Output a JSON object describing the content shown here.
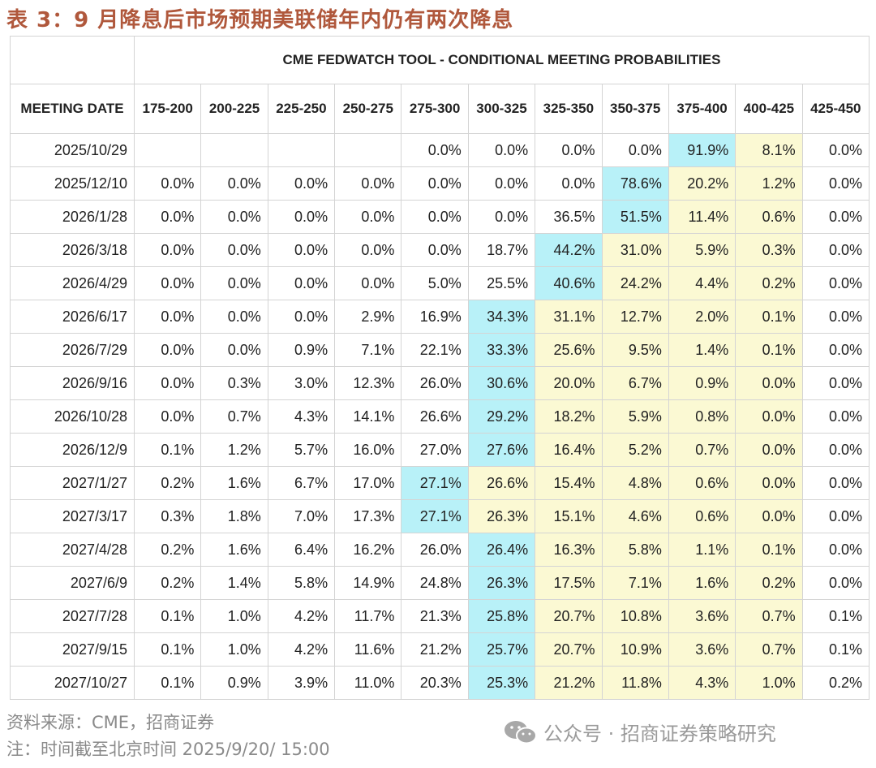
{
  "title": "表 3：9 月降息后市场预期美联储年内仍有两次降息",
  "table": {
    "group_header": "CME FEDWATCH TOOL - CONDITIONAL MEETING PROBABILITIES",
    "first_column_header": "MEETING DATE",
    "columns": [
      "175-200",
      "200-225",
      "225-250",
      "250-275",
      "275-300",
      "300-325",
      "325-350",
      "350-375",
      "375-400",
      "400-425",
      "425-450"
    ],
    "rows": [
      {
        "date": "2025/10/29",
        "values": [
          null,
          null,
          null,
          null,
          "0.0%",
          "0.0%",
          "0.0%",
          "0.0%",
          "91.9%",
          "8.1%",
          "0.0%"
        ]
      },
      {
        "date": "2025/12/10",
        "values": [
          "0.0%",
          "0.0%",
          "0.0%",
          "0.0%",
          "0.0%",
          "0.0%",
          "0.0%",
          "78.6%",
          "20.2%",
          "1.2%",
          "0.0%"
        ]
      },
      {
        "date": "2026/1/28",
        "values": [
          "0.0%",
          "0.0%",
          "0.0%",
          "0.0%",
          "0.0%",
          "0.0%",
          "36.5%",
          "51.5%",
          "11.4%",
          "0.6%",
          "0.0%"
        ]
      },
      {
        "date": "2026/3/18",
        "values": [
          "0.0%",
          "0.0%",
          "0.0%",
          "0.0%",
          "0.0%",
          "18.7%",
          "44.2%",
          "31.0%",
          "5.9%",
          "0.3%",
          "0.0%"
        ]
      },
      {
        "date": "2026/4/29",
        "values": [
          "0.0%",
          "0.0%",
          "0.0%",
          "0.0%",
          "5.0%",
          "25.5%",
          "40.6%",
          "24.2%",
          "4.4%",
          "0.2%",
          "0.0%"
        ]
      },
      {
        "date": "2026/6/17",
        "values": [
          "0.0%",
          "0.0%",
          "0.0%",
          "2.9%",
          "16.9%",
          "34.3%",
          "31.1%",
          "12.7%",
          "2.0%",
          "0.1%",
          "0.0%"
        ]
      },
      {
        "date": "2026/7/29",
        "values": [
          "0.0%",
          "0.0%",
          "0.9%",
          "7.1%",
          "22.1%",
          "33.3%",
          "25.6%",
          "9.5%",
          "1.4%",
          "0.1%",
          "0.0%"
        ]
      },
      {
        "date": "2026/9/16",
        "values": [
          "0.0%",
          "0.3%",
          "3.0%",
          "12.3%",
          "26.0%",
          "30.6%",
          "20.0%",
          "6.7%",
          "0.9%",
          "0.0%",
          "0.0%"
        ]
      },
      {
        "date": "2026/10/28",
        "values": [
          "0.0%",
          "0.7%",
          "4.3%",
          "14.1%",
          "26.6%",
          "29.2%",
          "18.2%",
          "5.9%",
          "0.8%",
          "0.0%",
          "0.0%"
        ]
      },
      {
        "date": "2026/12/9",
        "values": [
          "0.1%",
          "1.2%",
          "5.7%",
          "16.0%",
          "27.0%",
          "27.6%",
          "16.4%",
          "5.2%",
          "0.7%",
          "0.0%",
          "0.0%"
        ]
      },
      {
        "date": "2027/1/27",
        "values": [
          "0.2%",
          "1.6%",
          "6.7%",
          "17.0%",
          "27.1%",
          "26.6%",
          "15.4%",
          "4.8%",
          "0.6%",
          "0.0%",
          "0.0%"
        ]
      },
      {
        "date": "2027/3/17",
        "values": [
          "0.3%",
          "1.8%",
          "7.0%",
          "17.3%",
          "27.1%",
          "26.3%",
          "15.1%",
          "4.6%",
          "0.6%",
          "0.0%",
          "0.0%"
        ]
      },
      {
        "date": "2027/4/28",
        "values": [
          "0.2%",
          "1.6%",
          "6.4%",
          "16.2%",
          "26.0%",
          "26.4%",
          "16.3%",
          "5.8%",
          "1.1%",
          "0.1%",
          "0.0%"
        ]
      },
      {
        "date": "2027/6/9",
        "values": [
          "0.2%",
          "1.4%",
          "5.8%",
          "14.9%",
          "24.8%",
          "26.3%",
          "17.5%",
          "7.1%",
          "1.6%",
          "0.2%",
          "0.0%"
        ]
      },
      {
        "date": "2027/7/28",
        "values": [
          "0.1%",
          "1.0%",
          "4.2%",
          "11.7%",
          "21.3%",
          "25.8%",
          "20.7%",
          "10.8%",
          "3.6%",
          "0.7%",
          "0.1%"
        ]
      },
      {
        "date": "2027/9/15",
        "values": [
          "0.1%",
          "1.0%",
          "4.2%",
          "11.6%",
          "21.2%",
          "25.7%",
          "20.7%",
          "10.9%",
          "3.6%",
          "0.7%",
          "0.1%"
        ]
      },
      {
        "date": "2027/10/27",
        "values": [
          "0.1%",
          "0.9%",
          "3.9%",
          "11.0%",
          "20.3%",
          "25.3%",
          "21.2%",
          "11.8%",
          "4.3%",
          "1.0%",
          "0.2%"
        ]
      }
    ]
  },
  "footer": {
    "source": "资料来源：CME，招商证券",
    "note": "注：时间截至北京时间 2025/9/20/ 15:00",
    "watermark": "公众号 · 招商证券策略研究"
  }
}
